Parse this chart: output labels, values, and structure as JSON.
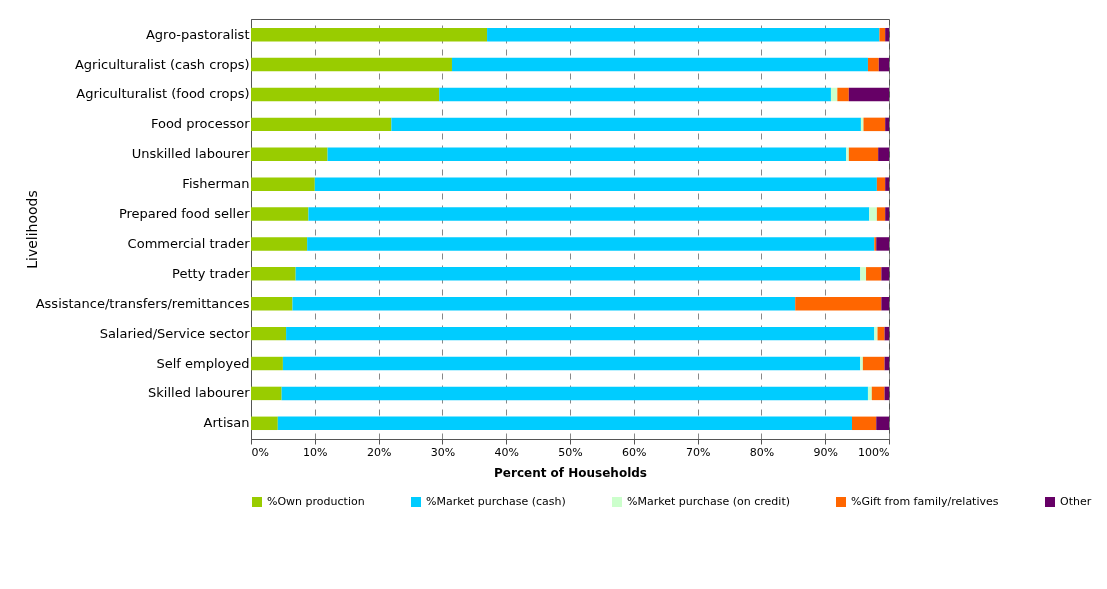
{
  "chart_data": {
    "type": "bar",
    "orientation": "horizontal",
    "stacked": true,
    "xlabel": "Percent of Households",
    "ylabel": "Livelihoods",
    "categories": [
      "Agro-pastoralist",
      "Agriculturalist (cash crops)",
      "Agriculturalist (food crops)",
      "Food processor",
      "Unskilled labourer",
      "Fisherman",
      "Prepared food seller",
      "Commercial trader",
      "Petty trader",
      "Assistance/transfers/remittances",
      "Salaried/Service sector",
      "Self employed",
      "Skilled labourer",
      "Artisan"
    ],
    "series": [
      {
        "name": "%Own production",
        "color": "#99cc00",
        "values": [
          37,
          31.5,
          29.5,
          22,
          12,
          10,
          9,
          8.8,
          7,
          6.5,
          5.5,
          5,
          4.8,
          4.2
        ]
      },
      {
        "name": "%Market purchase (cash)",
        "color": "#00ccff",
        "values": [
          61.5,
          65.2,
          61.4,
          73.6,
          81.3,
          88.1,
          87.9,
          88.9,
          88.5,
          78.8,
          92.2,
          90.5,
          91.9,
          90
        ]
      },
      {
        "name": "%Market purchase (on credit)",
        "color": "#ccffcc",
        "values": [
          0,
          0,
          1,
          0.4,
          0.4,
          0,
          1.2,
          0,
          0.9,
          0,
          0.5,
          0.4,
          0.6,
          0
        ]
      },
      {
        "name": "%Gift from family/relatives",
        "color": "#ff6600",
        "values": [
          0.9,
          1.7,
          1.8,
          3.4,
          4.6,
          1.3,
          1.3,
          0.3,
          2.4,
          13.5,
          1.1,
          3.4,
          2,
          3.8
        ]
      },
      {
        "name": "Other",
        "color": "#660066",
        "values": [
          0.6,
          1.6,
          6.3,
          0.6,
          1.7,
          0.6,
          0.6,
          2,
          1.2,
          1.2,
          0.7,
          0.7,
          0.7,
          2
        ]
      }
    ],
    "xlim": [
      0,
      100
    ],
    "xticks": [
      {
        "value": 0,
        "label": "0%"
      },
      {
        "value": 10,
        "label": "10%"
      },
      {
        "value": 20,
        "label": "20%"
      },
      {
        "value": 30,
        "label": "30%"
      },
      {
        "value": 40,
        "label": "40%"
      },
      {
        "value": 50,
        "label": "50%"
      },
      {
        "value": 60,
        "label": "60%"
      },
      {
        "value": 70,
        "label": "70%"
      },
      {
        "value": 80,
        "label": "80%"
      },
      {
        "value": 90,
        "label": "90%"
      },
      {
        "value": 100,
        "label": "100%"
      }
    ],
    "grid": "x",
    "legend": "bottom"
  }
}
